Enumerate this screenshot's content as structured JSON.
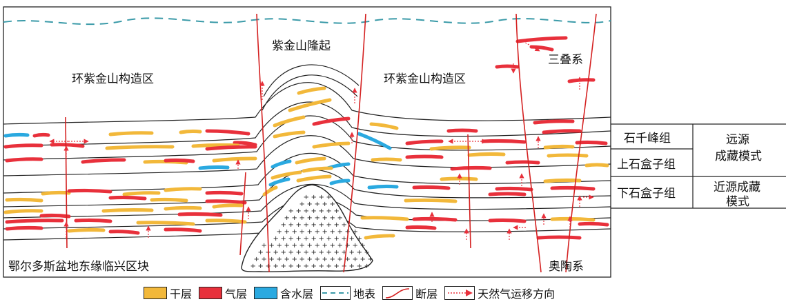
{
  "labels": {
    "uplift": "紫金山隆起",
    "structure_left": "环紫金山构造区",
    "structure_right": "环紫金山构造区",
    "triassic": "三叠系",
    "ordovician": "奥陶系",
    "block": "鄂尔多斯盆地东缘临兴区块"
  },
  "formation_table": {
    "formations": [
      "石千峰组",
      "上石盒子组",
      "下石盒子组"
    ],
    "modes": [
      {
        "line1": "远源",
        "line2": "成藏模式"
      },
      {
        "line1": "近源成藏",
        "line2": "模式"
      }
    ]
  },
  "legend": [
    {
      "label": "干层",
      "color": "#F2B83A"
    },
    {
      "label": "气层",
      "color": "#E8303B"
    },
    {
      "label": "含水层",
      "color": "#2AA9E0"
    },
    {
      "label": "地表",
      "color": "#3A9AA8"
    },
    {
      "label": "断层",
      "color": "#D42020"
    },
    {
      "label": "天然气运移方向",
      "color": "#D42020"
    }
  ],
  "colors": {
    "dry": "#F2B83A",
    "gas": "#E8303B",
    "water": "#2AA9E0",
    "surface": "#3A9AA8",
    "fault": "#D42020",
    "strata": "#222222"
  }
}
